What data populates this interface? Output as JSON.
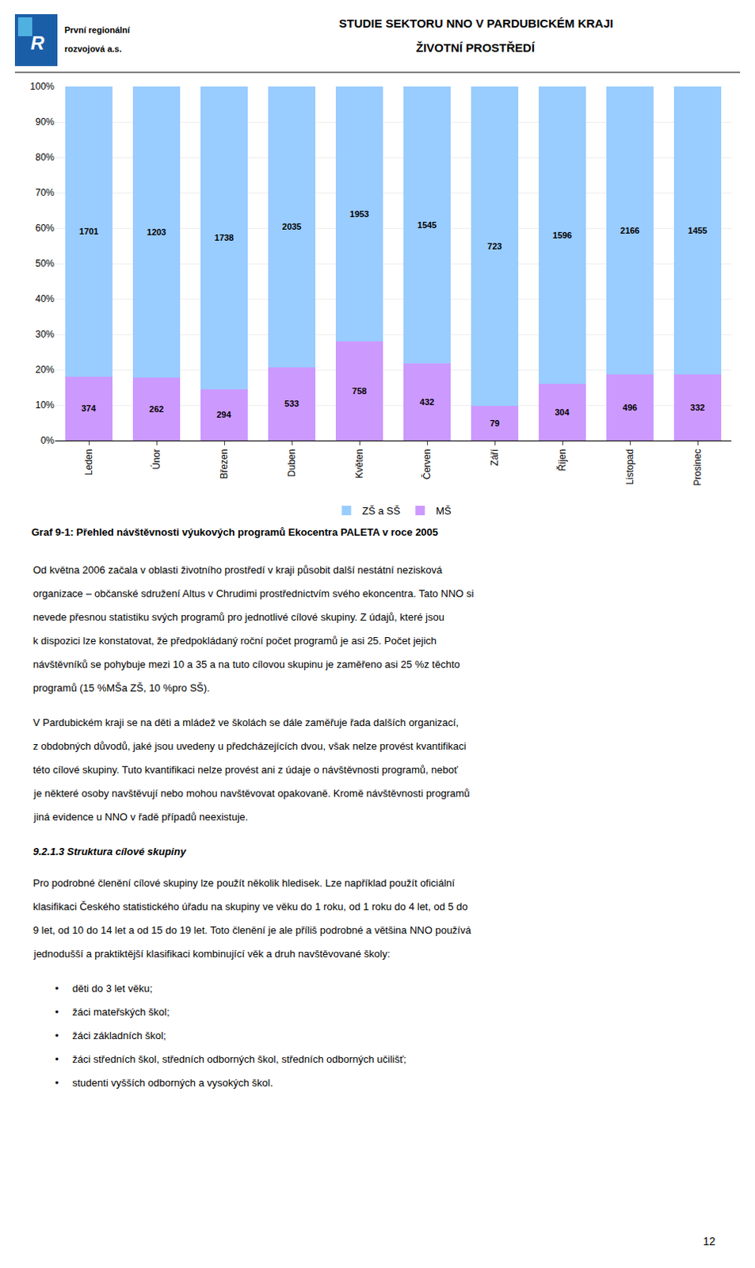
{
  "chart_data": {
    "type": "bar",
    "stacked": true,
    "title": "Graf 9-1: Přehled návštěvnosti výukových programů Ekocentra PALETA v roce 2005",
    "categories": [
      "Leden",
      "Únor",
      "Březen",
      "Duben",
      "Květen",
      "Červen",
      "Září",
      "Říjen",
      "Listopad",
      "Prosinec"
    ],
    "series": [
      {
        "name": "MŠ",
        "color": "#CC99FF",
        "values": [
          18.0241,
          17.884,
          14.4685,
          20.7555,
          27.9602,
          21.8513,
          9.8504,
          16,
          18.6326,
          18.5786
        ],
        "counts": [
          374,
          262,
          294,
          533,
          758,
          432,
          79,
          304,
          496,
          332
        ]
      },
      {
        "name": "ZŠ a SŠ",
        "color": "#99CCFF",
        "values": [
          81.9759,
          82.116,
          85.5315,
          79.2445,
          72.0398,
          78.1487,
          90.1496,
          84,
          81.3674,
          81.4214
        ],
        "counts": [
          1701,
          1203,
          1738,
          2035,
          1953,
          1545,
          723,
          1596,
          2166,
          1455
        ]
      }
    ],
    "ylim": [
      0,
      100
    ],
    "yticks": [
      {
        "value": 0,
        "label": "0%"
      },
      {
        "value": 10,
        "label": "10%"
      },
      {
        "value": 20,
        "label": "20%"
      },
      {
        "value": 30,
        "label": "30%"
      },
      {
        "value": 40,
        "label": "40%"
      },
      {
        "value": 50,
        "label": "50%"
      },
      {
        "value": 60,
        "label": "60%"
      },
      {
        "value": 70,
        "label": "70%"
      },
      {
        "value": 80,
        "label": "80%"
      },
      {
        "value": 90,
        "label": "90%"
      },
      {
        "value": 100,
        "label": "100%"
      }
    ],
    "grid": true,
    "legend": "bottom"
  },
  "page": {
    "header": [
      "STUDIE SEKTORU NNO V PARDUBICKÉM KRAJI",
      "ŽIVOTNÍ PROSTŘEDÍ"
    ],
    "logo": {
      "mark": "R",
      "name": [
        "První regionální",
        "rozvojová a.s."
      ],
      "colors": [
        "#1B5EA8",
        "#4EB1E0"
      ]
    },
    "text_blocks": [
      {
        "lines": [
          "Od května 2006 začala v oblasti životního prostředí v kraji působit další nestátní nezisková",
          "organizace – občanské sdružení Altus v Chrudimi prostřednictvím svého ekoncentra. Tato NNO si",
          "nevede přesnou statistiku svých programů pro jednotlivé cílové skupiny. Z údajů, které jsou",
          "k dispozici lze konstatovat, že předpokládaný roční počet programů je asi 25. Počet jejich",
          "návštěvníků se pohybuje mezi 10 a 35 a na tuto cílovou skupinu je zaměřeno asi 25 %z těchto",
          "programů (15 %MŠa ZŠ, 10 %pro SŠ)."
        ]
      },
      {
        "lines": [
          "V Pardubickém kraji se na děti a mládež ve školách se dále zaměřuje řada dalších organizací,",
          "z obdobných důvodů, jaké jsou uvedeny u předcházejících dvou, však nelze provést kvantifikaci",
          "této cílové skupiny. Tuto kvantifikaci nelze provést ani z údaje o návštěvnosti programů, neboť",
          "je některé osoby navštěvují nebo mohou navštěvovat opakovaně. Kromě návštěvnosti programů",
          "jiná evidence u NNO v řadě případů neexistuje."
        ]
      },
      {
        "heading": "9.2.1.3 Struktura cílové skupiny"
      },
      {
        "lines": [
          "Pro podrobné členění cílové skupiny lze použít několik hledisek. Lze například použít oficiální",
          "klasifikaci Českého statistického úřadu na skupiny ve věku do 1 roku, od 1 roku do 4 let, od 5 do",
          "9 let, od 10 do 14 let a od 15 do 19 let. Toto členění je ale příliš podrobné a většina NNO používá",
          "jednodušší a praktiktější klasifikaci kombinující věk a druh navštěvované školy:"
        ]
      },
      {
        "bullet_mark": "•",
        "bullets": [
          "děti do 3 let věku;",
          "žáci mateřských škol;",
          "žáci základních škol;",
          "žáci středních škol, středních odborných škol, středních odborných učilišť;",
          "studenti vyšších odborných a vysokých škol."
        ]
      }
    ],
    "page_number": "12"
  }
}
